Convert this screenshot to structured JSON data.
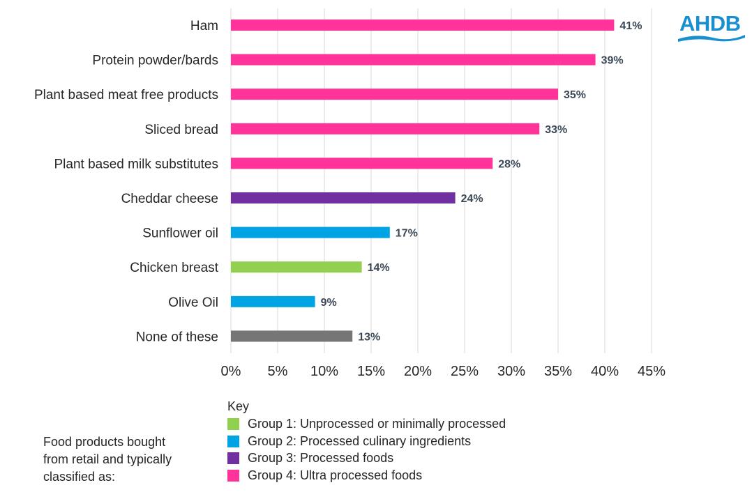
{
  "chart_data": {
    "type": "bar",
    "orientation": "horizontal",
    "categories": [
      "Ham",
      "Protein powder/bards",
      "Plant based meat free products",
      "Sliced bread",
      "Plant based milk substitutes",
      "Cheddar cheese",
      "Sunflower oil",
      "Chicken breast",
      "Olive Oil",
      "None of these"
    ],
    "values": [
      41,
      39,
      35,
      33,
      28,
      24,
      17,
      14,
      9,
      13
    ],
    "value_labels": [
      "41%",
      "39%",
      "35%",
      "33%",
      "28%",
      "24%",
      "17%",
      "14%",
      "9%",
      "13%"
    ],
    "bar_groups": [
      "group4",
      "group4",
      "group4",
      "group4",
      "group4",
      "group3",
      "group2",
      "group1",
      "group2",
      "none"
    ],
    "xlim": [
      0,
      45
    ],
    "x_ticks": [
      0,
      5,
      10,
      15,
      20,
      25,
      30,
      35,
      40,
      45
    ],
    "x_tick_labels": [
      "0%",
      "5%",
      "10%",
      "15%",
      "20%",
      "25%",
      "30%",
      "35%",
      "40%",
      "45%"
    ],
    "grid": "vertical",
    "title": "",
    "xlabel": "",
    "ylabel": ""
  },
  "colors": {
    "group1": "#92d050",
    "group2": "#00a4e4",
    "group3": "#7030a0",
    "group4": "#ff3399",
    "none": "#767676",
    "brand": "#1a8fd0"
  },
  "legend": {
    "title": "Key",
    "items": [
      {
        "label": "Group 1: Unprocessed or minimally processed",
        "color_key": "group1"
      },
      {
        "label": "Group 2: Processed culinary ingredients",
        "color_key": "group2"
      },
      {
        "label": "Group 3: Processed foods",
        "color_key": "group3"
      },
      {
        "label": "Group 4: Ultra processed foods",
        "color_key": "group4"
      }
    ]
  },
  "footnote": {
    "lines": [
      "Food products bought",
      "from retail and typically",
      "classified as:"
    ]
  },
  "logo": {
    "text": "AHDB",
    "icon": "ahdb-wave-logo"
  }
}
